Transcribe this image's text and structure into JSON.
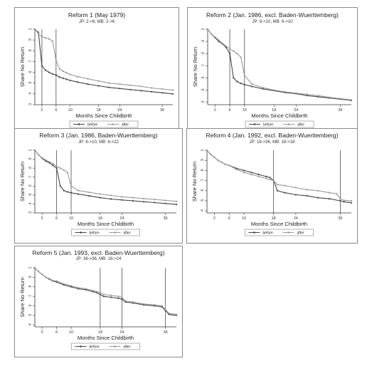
{
  "chart_data": [
    {
      "type": "line",
      "title": "Reform 1 (May 1979)",
      "subtitle": "JP: 2->6, MB: 2->6",
      "xlabel": "Months Since Childbirth",
      "ylabel": "Share No Return",
      "xticks": [
        "2",
        "6",
        "10",
        "18",
        "24",
        "36"
      ],
      "yticks": [
        ".3",
        ".4",
        ".5",
        ".6",
        ".7",
        ".8",
        ".9",
        "1"
      ],
      "xlim": [
        0,
        39
      ],
      "ylim": [
        0.3,
        1.0
      ],
      "vlines": [
        2,
        6
      ],
      "legend_position": "bottom",
      "series": [
        {
          "name": "before",
          "color": "#444444",
          "x": [
            0,
            1,
            2,
            3,
            4,
            5,
            6,
            7,
            8,
            9,
            10,
            12,
            15,
            18,
            21,
            24,
            27,
            30,
            33,
            36,
            39
          ],
          "values": [
            1.0,
            0.97,
            0.66,
            0.62,
            0.6,
            0.585,
            0.575,
            0.555,
            0.545,
            0.535,
            0.525,
            0.51,
            0.49,
            0.475,
            0.46,
            0.45,
            0.44,
            0.43,
            0.42,
            0.41,
            0.4
          ]
        },
        {
          "name": "after",
          "color": "#9a9a9a",
          "x": [
            0,
            1,
            2,
            3,
            4,
            5,
            6,
            7,
            8,
            9,
            10,
            12,
            15,
            18,
            21,
            24,
            27,
            30,
            33,
            36,
            39
          ],
          "values": [
            1.0,
            0.96,
            0.93,
            0.92,
            0.91,
            0.89,
            0.71,
            0.63,
            0.61,
            0.595,
            0.58,
            0.56,
            0.54,
            0.52,
            0.5,
            0.49,
            0.48,
            0.47,
            0.455,
            0.445,
            0.435
          ]
        }
      ]
    },
    {
      "type": "line",
      "title": "Reform 2 (Jan. 1986, excl. Baden-Wuerttemberg)",
      "subtitle": "JP: 6->10, MB: 6->10",
      "xlabel": "Months Since Childbirth",
      "ylabel": "Share No Return",
      "xticks": [
        "2",
        "6",
        "10",
        "18",
        "24",
        "36"
      ],
      "yticks": [
        ".4",
        ".5",
        ".6",
        ".7",
        ".8",
        ".9",
        "1"
      ],
      "xlim": [
        0,
        39
      ],
      "ylim": [
        0.38,
        1.0
      ],
      "vlines": [
        6,
        10
      ],
      "legend_position": "bottom",
      "series": [
        {
          "name": "before",
          "color": "#444444",
          "x": [
            0,
            1,
            2,
            3,
            4,
            5,
            6,
            7,
            8,
            9,
            10,
            12,
            15,
            18,
            21,
            24,
            27,
            30,
            33,
            36,
            39
          ],
          "values": [
            1.0,
            0.96,
            0.93,
            0.9,
            0.88,
            0.85,
            0.8,
            0.6,
            0.57,
            0.555,
            0.545,
            0.53,
            0.51,
            0.495,
            0.48,
            0.47,
            0.455,
            0.445,
            0.435,
            0.425,
            0.415
          ]
        },
        {
          "name": "after",
          "color": "#9a9a9a",
          "x": [
            0,
            1,
            2,
            3,
            4,
            5,
            6,
            7,
            8,
            9,
            10,
            12,
            15,
            18,
            21,
            24,
            27,
            30,
            33,
            36,
            39
          ],
          "values": [
            1.0,
            0.96,
            0.935,
            0.91,
            0.885,
            0.86,
            0.84,
            0.82,
            0.8,
            0.77,
            0.62,
            0.55,
            0.52,
            0.5,
            0.485,
            0.475,
            0.465,
            0.455,
            0.44,
            0.43,
            0.42
          ]
        }
      ]
    },
    {
      "type": "line",
      "title": "Reform 3 (Jan. 1986, Baden-Wuerttemberg)",
      "subtitle": "JP: 6->10, MB: 6->22",
      "xlabel": "Months Since Childbirth",
      "ylabel": "Share No Return",
      "xticks": [
        "2",
        "6",
        "10",
        "18",
        "24",
        "36"
      ],
      "yticks": [
        ".3",
        ".4",
        ".5",
        ".6",
        ".7",
        ".8",
        ".9",
        "1"
      ],
      "xlim": [
        0,
        39
      ],
      "ylim": [
        0.3,
        1.0
      ],
      "vlines": [
        6,
        10
      ],
      "legend_position": "bottom",
      "series": [
        {
          "name": "before",
          "color": "#444444",
          "x": [
            0,
            1,
            2,
            3,
            4,
            5,
            6,
            7,
            8,
            9,
            10,
            12,
            15,
            18,
            21,
            24,
            27,
            30,
            33,
            36,
            39
          ],
          "values": [
            1.0,
            0.95,
            0.91,
            0.88,
            0.86,
            0.83,
            0.8,
            0.6,
            0.55,
            0.535,
            0.525,
            0.51,
            0.49,
            0.47,
            0.455,
            0.445,
            0.435,
            0.425,
            0.415,
            0.405,
            0.395
          ]
        },
        {
          "name": "after",
          "color": "#9a9a9a",
          "x": [
            0,
            1,
            2,
            3,
            4,
            5,
            6,
            7,
            8,
            9,
            10,
            12,
            15,
            18,
            21,
            24,
            27,
            30,
            33,
            36,
            39
          ],
          "values": [
            1.0,
            0.95,
            0.915,
            0.89,
            0.87,
            0.85,
            0.82,
            0.8,
            0.78,
            0.75,
            0.6,
            0.55,
            0.53,
            0.51,
            0.495,
            0.48,
            0.47,
            0.46,
            0.45,
            0.44,
            0.43
          ]
        }
      ]
    },
    {
      "type": "line",
      "title": "Reform 4 (Jan. 1992, excl. Baden-Wuerttemberg)",
      "subtitle": "JP: 18->36, MB: 18->18",
      "xlabel": "Months Since Childbirth",
      "ylabel": "Share No Return",
      "xticks": [
        "2",
        "6",
        "10",
        "18",
        "24",
        "36"
      ],
      "yticks": [
        ".4",
        ".5",
        ".6",
        ".7",
        ".8",
        ".9",
        "1"
      ],
      "xlim": [
        0,
        39
      ],
      "ylim": [
        0.38,
        1.0
      ],
      "vlines": [
        18,
        36
      ],
      "legend_position": "bottom",
      "series": [
        {
          "name": "before",
          "color": "#444444",
          "x": [
            0,
            1,
            2,
            3,
            4,
            5,
            6,
            8,
            10,
            12,
            14,
            16,
            17,
            18,
            19,
            21,
            24,
            27,
            30,
            33,
            36,
            37,
            39
          ],
          "values": [
            1.0,
            0.96,
            0.93,
            0.9,
            0.88,
            0.86,
            0.85,
            0.82,
            0.8,
            0.78,
            0.76,
            0.74,
            0.73,
            0.7,
            0.6,
            0.58,
            0.56,
            0.55,
            0.53,
            0.52,
            0.5,
            0.49,
            0.48
          ]
        },
        {
          "name": "after",
          "color": "#9a9a9a",
          "x": [
            0,
            1,
            2,
            3,
            4,
            5,
            6,
            8,
            10,
            12,
            14,
            16,
            17,
            18,
            19,
            21,
            24,
            27,
            30,
            33,
            35,
            36,
            37,
            39
          ],
          "values": [
            1.0,
            0.96,
            0.93,
            0.9,
            0.88,
            0.86,
            0.85,
            0.81,
            0.78,
            0.76,
            0.74,
            0.72,
            0.71,
            0.7,
            0.66,
            0.65,
            0.63,
            0.61,
            0.6,
            0.58,
            0.57,
            0.52,
            0.505,
            0.5
          ]
        }
      ]
    },
    {
      "type": "line",
      "title": "Reform 5 (Jan. 1993, excl. Baden-Wuerttemberg)",
      "subtitle": "JP: 36->36, MB: 18->24",
      "xlabel": "Months Since Childbirth",
      "ylabel": "Share No Return",
      "xticks": [
        "2",
        "6",
        "10",
        "18",
        "24",
        "36"
      ],
      "yticks": [
        ".4",
        ".5",
        ".6",
        ".7",
        ".8",
        ".9",
        "1"
      ],
      "xlim": [
        0,
        39
      ],
      "ylim": [
        0.38,
        1.0
      ],
      "vlines": [
        18,
        24,
        36
      ],
      "legend_position": "bottom",
      "series": [
        {
          "name": "before",
          "color": "#444444",
          "x": [
            0,
            1,
            2,
            3,
            4,
            5,
            6,
            8,
            10,
            12,
            14,
            16,
            17,
            18,
            19,
            21,
            23,
            24,
            25,
            27,
            30,
            33,
            35,
            36,
            37,
            39
          ],
          "values": [
            1.0,
            0.96,
            0.93,
            0.9,
            0.88,
            0.86,
            0.85,
            0.82,
            0.8,
            0.78,
            0.77,
            0.75,
            0.74,
            0.72,
            0.7,
            0.69,
            0.68,
            0.67,
            0.64,
            0.63,
            0.61,
            0.6,
            0.59,
            0.55,
            0.51,
            0.5
          ]
        },
        {
          "name": "after",
          "color": "#9a9a9a",
          "x": [
            0,
            1,
            2,
            3,
            4,
            5,
            6,
            8,
            10,
            12,
            14,
            16,
            17,
            18,
            19,
            21,
            23,
            24,
            25,
            27,
            30,
            33,
            35,
            36,
            37,
            39
          ],
          "values": [
            1.0,
            0.96,
            0.93,
            0.9,
            0.885,
            0.865,
            0.86,
            0.83,
            0.81,
            0.79,
            0.78,
            0.76,
            0.75,
            0.74,
            0.72,
            0.71,
            0.7,
            0.69,
            0.65,
            0.64,
            0.62,
            0.61,
            0.6,
            0.56,
            0.52,
            0.51
          ]
        }
      ]
    }
  ]
}
